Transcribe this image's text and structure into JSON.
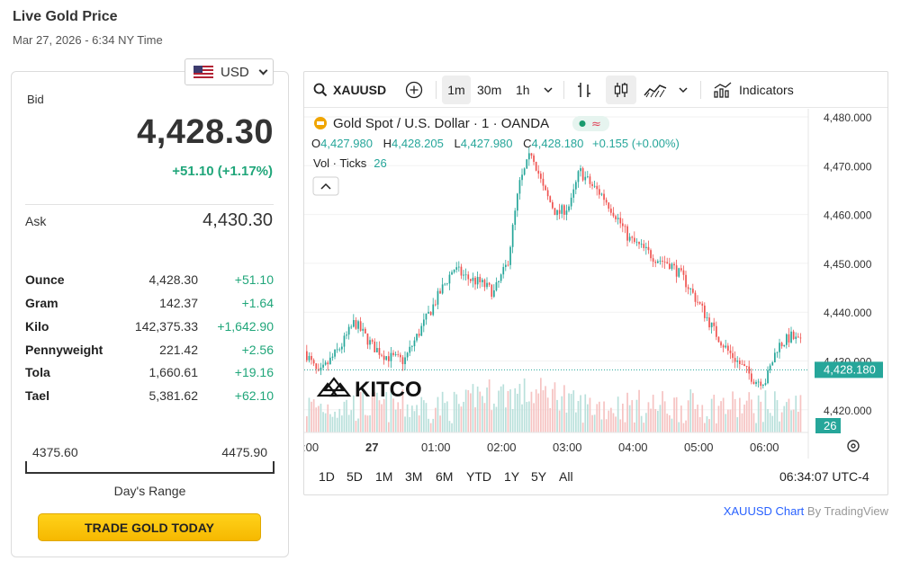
{
  "header": {
    "title": "Live Gold Price",
    "datetime": "Mar 27, 2026 - 6:34 NY Time"
  },
  "currency": {
    "selected": "USD",
    "flag": "us-flag-icon"
  },
  "bid": {
    "label": "Bid",
    "value": "4,428.30",
    "change": "+51.10 (+1.17%)"
  },
  "ask": {
    "label": "Ask",
    "value": "4,430.30"
  },
  "units": [
    {
      "label": "Ounce",
      "price": "4,428.30",
      "change": "+51.10"
    },
    {
      "label": "Gram",
      "price": "142.37",
      "change": "+1.64"
    },
    {
      "label": "Kilo",
      "price": "142,375.33",
      "change": "+1,642.90"
    },
    {
      "label": "Pennyweight",
      "price": "221.42",
      "change": "+2.56"
    },
    {
      "label": "Tola",
      "price": "1,660.61",
      "change": "+19.16"
    },
    {
      "label": "Tael",
      "price": "5,381.62",
      "change": "+62.10"
    }
  ],
  "range": {
    "low": "4375.60",
    "high": "4475.90",
    "label": "Day's Range",
    "position": 0.52
  },
  "trade_button": "TRADE GOLD TODAY",
  "toolbar": {
    "symbol": "XAUUSD",
    "intervals": [
      "1m",
      "30m",
      "1h"
    ],
    "active_interval": "1m",
    "indicators_label": "Indicators"
  },
  "legend": {
    "title": "Gold Spot / U.S. Dollar · 1 · OANDA",
    "open_label": "O",
    "open": "4,427.980",
    "high_label": "H",
    "high": "4,428.205",
    "low_label": "L",
    "low": "4,427.980",
    "close_label": "C",
    "close": "4,428.180",
    "change": "+0.155 (+0.00%)",
    "vol_label": "Vol · Ticks",
    "vol_value": "26"
  },
  "watermark": "KITCO",
  "colors": {
    "up": "#26a69a",
    "down": "#ef5350",
    "accent": "#2962ff",
    "gold": "#f6b800",
    "change_green": "#20a67a"
  },
  "chart_data": {
    "type": "candlestick",
    "y_ticks": [
      "4,480.000",
      "4,470.000",
      "4,460.000",
      "4,450.000",
      "4,440.000",
      "4,430.000",
      "4,420.000"
    ],
    "ylim": [
      4416,
      4483
    ],
    "x_ticks": [
      ":00",
      "27",
      "01:00",
      "02:00",
      "03:00",
      "04:00",
      "05:00",
      "06:00"
    ],
    "last_price": "4,428.180",
    "last_price_value": 4428.18,
    "last_volume": "26",
    "price_path": [
      [
        0,
        4432
      ],
      [
        15,
        4427
      ],
      [
        40,
        4433
      ],
      [
        55,
        4438
      ],
      [
        75,
        4433
      ],
      [
        90,
        4431
      ],
      [
        110,
        4430
      ],
      [
        130,
        4437
      ],
      [
        150,
        4444
      ],
      [
        165,
        4449
      ],
      [
        180,
        4447
      ],
      [
        195,
        4446
      ],
      [
        210,
        4444
      ],
      [
        225,
        4450
      ],
      [
        238,
        4466
      ],
      [
        252,
        4473
      ],
      [
        265,
        4465
      ],
      [
        280,
        4460
      ],
      [
        295,
        4462
      ],
      [
        305,
        4469
      ],
      [
        318,
        4466
      ],
      [
        330,
        4464
      ],
      [
        345,
        4460
      ],
      [
        360,
        4455
      ],
      [
        375,
        4453
      ],
      [
        390,
        4451
      ],
      [
        405,
        4450
      ],
      [
        420,
        4447
      ],
      [
        440,
        4441
      ],
      [
        455,
        4436
      ],
      [
        470,
        4432
      ],
      [
        485,
        4429
      ],
      [
        500,
        4426
      ],
      [
        512,
        4426
      ],
      [
        525,
        4433
      ],
      [
        540,
        4435
      ],
      [
        555,
        4433
      ],
      [
        570,
        4430
      ],
      [
        585,
        4428
      ],
      [
        600,
        4427
      ],
      [
        612,
        4427
      ],
      [
        625,
        4428
      ]
    ]
  },
  "ranges": [
    "1D",
    "5D",
    "1M",
    "3M",
    "6M",
    "YTD",
    "1Y",
    "5Y",
    "All"
  ],
  "clock": "06:34:07 UTC-4",
  "footer": {
    "link": "XAUUSD Chart",
    "by": " By TradingView"
  }
}
